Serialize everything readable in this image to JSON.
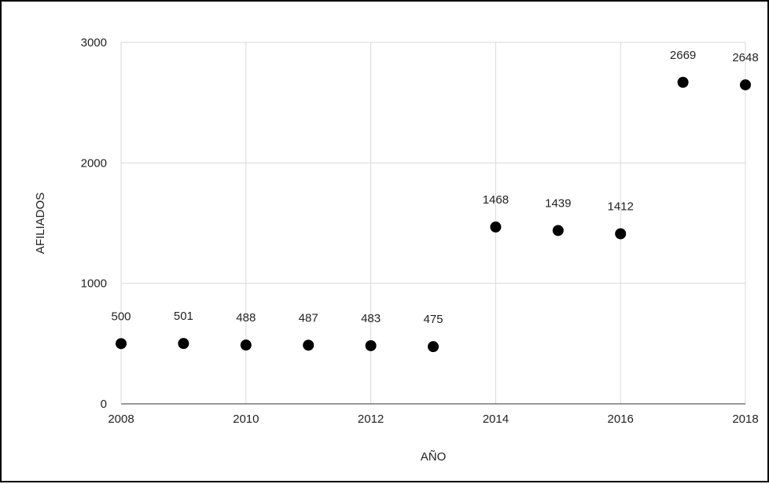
{
  "chart_data": {
    "type": "scatter",
    "title": "",
    "xlabel": "AÑO",
    "ylabel": "AFILIADOS",
    "x": [
      2008,
      2009,
      2010,
      2011,
      2012,
      2013,
      2014,
      2015,
      2016,
      2017,
      2018
    ],
    "series": [
      {
        "values": [
          500,
          501,
          488,
          487,
          483,
          475,
          1468,
          1439,
          1412,
          2669,
          2648
        ],
        "labels": [
          "500",
          "501",
          "488",
          "487",
          "483",
          "475",
          "1468",
          "1439",
          "1412",
          "2669",
          "2648"
        ],
        "color": "#000000"
      }
    ],
    "xlim": [
      2008,
      2018
    ],
    "ylim": [
      0,
      3000
    ],
    "x_ticks": [
      "2008",
      "2010",
      "2012",
      "2014",
      "2016",
      "2018"
    ],
    "y_ticks": [
      "0",
      "1000",
      "2000",
      "3000"
    ],
    "grid": true,
    "legend": "none"
  }
}
